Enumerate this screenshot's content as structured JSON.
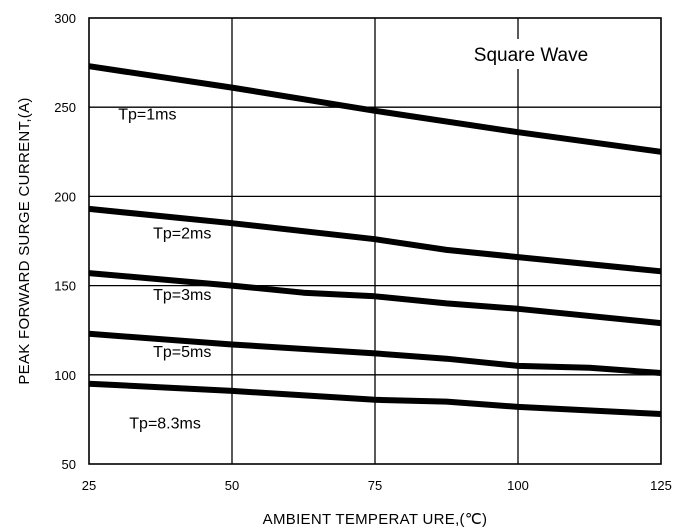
{
  "chart_data": {
    "type": "line",
    "xlabel": "AMBIENT TEMPERAT URE,(℃)",
    "ylabel": "PEAK FORWARD SURGE  CURRENT,(A)",
    "xlim": [
      25,
      125
    ],
    "ylim": [
      50,
      300
    ],
    "xticks": [
      25,
      50,
      75,
      100,
      125
    ],
    "yticks": [
      50,
      100,
      150,
      200,
      250,
      300
    ],
    "xtick_labels": [
      "25",
      "50",
      "75",
      "100",
      "125"
    ],
    "ytick_labels": [
      "50",
      "100",
      "150",
      "200",
      "250",
      "300"
    ],
    "grid": true,
    "annotation": "Square Wave",
    "series": [
      {
        "name": "Tp=1ms",
        "x": [
          25,
          50,
          75,
          100,
          125
        ],
        "y": [
          273,
          261,
          248,
          236,
          225
        ]
      },
      {
        "name": "Tp=2ms",
        "x": [
          25,
          50,
          75,
          87.5,
          100,
          125
        ],
        "y": [
          193,
          185,
          176,
          170,
          166,
          158
        ]
      },
      {
        "name": "Tp=3ms",
        "x": [
          25,
          50,
          62.5,
          75,
          87.5,
          100,
          125
        ],
        "y": [
          157,
          150,
          146,
          144,
          140,
          137,
          129
        ]
      },
      {
        "name": "Tp=5ms",
        "x": [
          25,
          50,
          75,
          87.5,
          100,
          112.5,
          125
        ],
        "y": [
          123,
          117,
          112,
          109,
          105,
          104,
          101
        ]
      },
      {
        "name": "Tp=8.3ms",
        "x": [
          25,
          50,
          75,
          87.5,
          100,
          125
        ],
        "y": [
          95,
          91,
          86,
          85,
          82,
          78
        ]
      }
    ]
  }
}
